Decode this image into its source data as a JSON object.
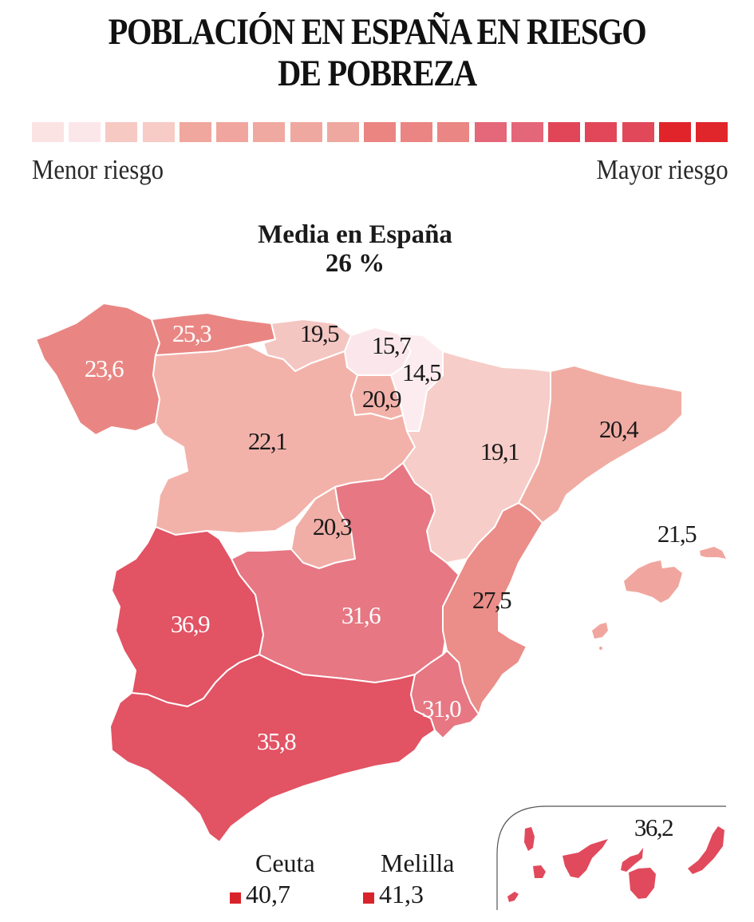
{
  "title_line1": "POBLACIÓN EN ESPAÑA EN RIESGO",
  "title_line2": "DE POBREZA",
  "legend": {
    "min_label": "Menor riesgo",
    "max_label": "Mayor riesgo",
    "colors": [
      "#fbe3e3",
      "#fbe7ea",
      "#f7c9c3",
      "#f7cbc6",
      "#f0a79e",
      "#f0a69f",
      "#f0a9a0",
      "#efa8a0",
      "#eea8a0",
      "#ea8582",
      "#ea8583",
      "#ea8684",
      "#e4677a",
      "#e46679",
      "#e14658",
      "#e14759",
      "#e1485a",
      "#e0242a",
      "#e0262b"
    ]
  },
  "average": {
    "label": "Media en España",
    "value": "26 %"
  },
  "chart_data": {
    "type": "choropleth",
    "title": "POBLACIÓN EN ESPAÑA EN RIESGO DE POBREZA",
    "unit": "%",
    "national_average": 26,
    "scale": {
      "low_label": "Menor riesgo",
      "high_label": "Mayor riesgo",
      "steps": 19
    },
    "regions": [
      {
        "name": "Galicia",
        "value": 23.6,
        "label": "23,6",
        "color": "#e8807d",
        "label_color": "#ffffff"
      },
      {
        "name": "Asturias",
        "value": 25.3,
        "label": "25,3",
        "color": "#e8807d",
        "label_color": "#ffffff"
      },
      {
        "name": "Cantabria",
        "value": 19.5,
        "label": "19,5",
        "color": "#f4c4bf",
        "label_color": "#1a1a1a"
      },
      {
        "name": "País Vasco",
        "value": 15.7,
        "label": "15,7",
        "color": "#fbe6ea",
        "label_color": "#1a1a1a"
      },
      {
        "name": "Navarra",
        "value": 14.5,
        "label": "14,5",
        "color": "#fcecef",
        "label_color": "#1a1a1a"
      },
      {
        "name": "La Rioja",
        "value": 20.9,
        "label": "20,9",
        "color": "#f2aea6",
        "label_color": "#1a1a1a"
      },
      {
        "name": "Castilla y León",
        "value": 22.1,
        "label": "22,1",
        "color": "#f2aea6",
        "label_color": "#1a1a1a"
      },
      {
        "name": "Aragón",
        "value": 19.1,
        "label": "19,1",
        "color": "#f6cbc6",
        "label_color": "#1a1a1a"
      },
      {
        "name": "Cataluña",
        "value": 20.4,
        "label": "20,4",
        "color": "#f0a89f",
        "label_color": "#1a1a1a"
      },
      {
        "name": "Madrid",
        "value": 20.3,
        "label": "20,3",
        "color": "#f0aaa2",
        "label_color": "#1a1a1a"
      },
      {
        "name": "Castilla-La Mancha",
        "value": 31.6,
        "label": "31,6",
        "color": "#e5707d",
        "label_color": "#ffffff"
      },
      {
        "name": "Comunidad Valenciana",
        "value": 27.5,
        "label": "27,5",
        "color": "#ea8782",
        "label_color": "#1a1a1a"
      },
      {
        "name": "Extremadura",
        "value": 36.9,
        "label": "36,9",
        "color": "#e14a5c",
        "label_color": "#ffffff"
      },
      {
        "name": "Andalucía",
        "value": 35.8,
        "label": "35,8",
        "color": "#e14a5c",
        "label_color": "#ffffff"
      },
      {
        "name": "Murcia",
        "value": 31.0,
        "label": "31,0",
        "color": "#e5707d",
        "label_color": "#ffffff"
      },
      {
        "name": "Baleares",
        "value": 21.5,
        "label": "21,5",
        "color": "#f0a69e",
        "label_color": "#1a1a1a"
      },
      {
        "name": "Canarias",
        "value": 36.2,
        "label": "36,2",
        "color": "#e14a5c",
        "label_color": "#1a1a1a"
      },
      {
        "name": "Ceuta",
        "value": 40.7,
        "label": "40,7",
        "color": "#d9232b"
      },
      {
        "name": "Melilla",
        "value": 41.3,
        "label": "41,3",
        "color": "#d9232b"
      }
    ]
  },
  "cities": {
    "ceuta": {
      "name": "Ceuta",
      "value": "40,7"
    },
    "melilla": {
      "name": "Melilla",
      "value": "41,3"
    }
  }
}
